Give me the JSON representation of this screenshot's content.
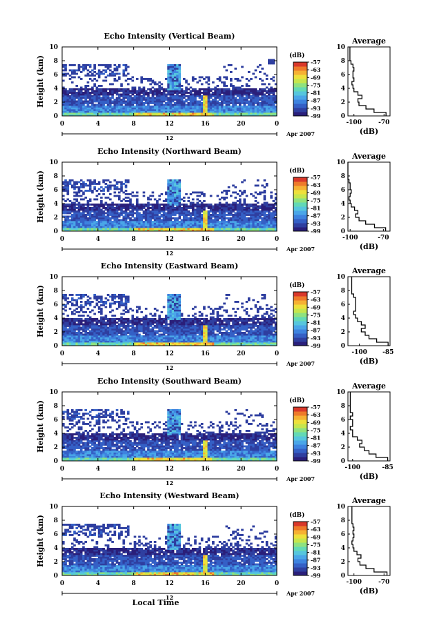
{
  "figure": {
    "x_axis_label": "Local Time",
    "date_label": "Apr 2007",
    "colors": [
      "#2a1f7a",
      "#2f3fa0",
      "#3560c6",
      "#3e83df",
      "#4aa6e8",
      "#56c6dd",
      "#63d9b5",
      "#8fe27f",
      "#c6e64d",
      "#eee03b",
      "#f6b133",
      "#ee7a2a",
      "#d9382a"
    ],
    "panels": [
      {
        "title": "Echo Intensity (Vertical Beam)",
        "y_label": "Height (km)",
        "cb_unit": "(dB)",
        "cb_ticks": [
          "-57",
          "-63",
          "-69",
          "-75",
          "-81",
          "-87",
          "-93",
          "-99"
        ],
        "x_ticks": [
          "0",
          "4",
          "8",
          "12",
          "16",
          "20",
          "0"
        ],
        "day_label": "12",
        "avg_title": "Average",
        "avg_unit": "(dB)",
        "avg_x_ticks": [
          "-100",
          "-70"
        ]
      },
      {
        "title": "Echo Intensity (Northward Beam)",
        "y_label": "Height (km)",
        "cb_unit": "(dB)",
        "cb_ticks": [
          "-57",
          "-63",
          "-69",
          "-75",
          "-81",
          "-87",
          "-93",
          "-99"
        ],
        "x_ticks": [
          "0",
          "4",
          "8",
          "12",
          "16",
          "20",
          "0"
        ],
        "day_label": "12",
        "avg_title": "Average",
        "avg_unit": "(dB)",
        "avg_x_ticks": [
          "-100",
          "-70"
        ]
      },
      {
        "title": "Echo Intensity (Eastward Beam)",
        "y_label": "Height (km)",
        "cb_unit": "(dB)",
        "cb_ticks": [
          "-57",
          "-63",
          "-69",
          "-75",
          "-81",
          "-87",
          "-93",
          "-99"
        ],
        "x_ticks": [
          "0",
          "4",
          "8",
          "12",
          "16",
          "20",
          "0"
        ],
        "day_label": "12",
        "avg_title": "Average",
        "avg_unit": "(dB)",
        "avg_x_ticks": [
          "-100",
          "-85"
        ]
      },
      {
        "title": "Echo Intensity (Southward Beam)",
        "y_label": "Height (km)",
        "cb_unit": "(dB)",
        "cb_ticks": [
          "-57",
          "-63",
          "-69",
          "-75",
          "-81",
          "-87",
          "-93",
          "-99"
        ],
        "x_ticks": [
          "0",
          "4",
          "8",
          "12",
          "16",
          "20",
          "0"
        ],
        "day_label": "12",
        "avg_title": "Average",
        "avg_unit": "(dB)",
        "avg_x_ticks": [
          "-100",
          "-85"
        ]
      },
      {
        "title": "Echo Intensity (Westward Beam)",
        "y_label": "Height (km)",
        "cb_unit": "(dB)",
        "cb_ticks": [
          "-57",
          "-63",
          "-69",
          "-75",
          "-81",
          "-87",
          "-93",
          "-99"
        ],
        "x_ticks": [
          "0",
          "4",
          "8",
          "12",
          "16",
          "20",
          "0"
        ],
        "day_label": "12",
        "avg_title": "Average",
        "avg_unit": "(dB)",
        "avg_x_ticks": [
          "-100",
          "-70"
        ]
      }
    ]
  },
  "chart_data": [
    {
      "type": "heatmap",
      "title": "Echo Intensity (Vertical Beam)",
      "xlabel": "Local Time",
      "ylabel": "Height (km)",
      "xlim": [
        0,
        24
      ],
      "ylim": [
        0,
        10
      ],
      "clim": [
        -99,
        -57
      ],
      "colorbar_label": "(dB)",
      "average_profile": {
        "title": "Average",
        "xlabel": "(dB)",
        "xlim": [
          -106,
          -64
        ],
        "height": [
          0,
          0.5,
          1,
          1.5,
          2,
          2.5,
          3,
          3.5,
          4,
          4.5,
          5,
          5.5,
          6,
          6.5,
          7,
          7.5,
          8,
          8.5,
          9,
          9.5,
          10
        ],
        "db": [
          -68,
          -80,
          -88,
          -95,
          -96,
          -92,
          -96,
          -100,
          -101,
          -102,
          -100,
          -101,
          -101,
          -100,
          -101,
          -103,
          -104,
          -104,
          -104,
          -104,
          -104
        ]
      }
    },
    {
      "type": "heatmap",
      "title": "Echo Intensity (Northward Beam)",
      "xlabel": "Local Time",
      "ylabel": "Height (km)",
      "xlim": [
        0,
        24
      ],
      "ylim": [
        0,
        10
      ],
      "clim": [
        -99,
        -57
      ],
      "colorbar_label": "(dB)",
      "average_profile": {
        "title": "Average",
        "xlabel": "(dB)",
        "xlim": [
          -102,
          -64
        ],
        "height": [
          0,
          0.5,
          1,
          1.5,
          2,
          2.5,
          3,
          3.5,
          4,
          4.5,
          5,
          5.5,
          6,
          6.5,
          7,
          7.5,
          8,
          8.5,
          9,
          9.5,
          10
        ],
        "db": [
          -68,
          -78,
          -86,
          -92,
          -95,
          -93,
          -96,
          -99,
          -100,
          -101,
          -100,
          -99,
          -100,
          -100,
          -101,
          -102,
          -102,
          -102,
          -102,
          -102,
          -102
        ]
      }
    },
    {
      "type": "heatmap",
      "title": "Echo Intensity (Eastward Beam)",
      "xlabel": "Local Time",
      "ylabel": "Height (km)",
      "xlim": [
        0,
        24
      ],
      "ylim": [
        0,
        10
      ],
      "clim": [
        -99,
        -57
      ],
      "colorbar_label": "(dB)",
      "average_profile": {
        "title": "Average",
        "xlabel": "(dB)",
        "xlim": [
          -106,
          -84
        ],
        "height": [
          0,
          0.5,
          1,
          1.5,
          2,
          2.5,
          3,
          3.5,
          4,
          4.5,
          5,
          5.5,
          6,
          6.5,
          7,
          7.5,
          8,
          8.5,
          9,
          9.5,
          10
        ],
        "db": [
          -85,
          -91,
          -95,
          -97,
          -99,
          -97,
          -99,
          -101,
          -102,
          -103,
          -102,
          -102,
          -102,
          -102,
          -103,
          -104,
          -104,
          -104,
          -104,
          -104,
          -104
        ]
      }
    },
    {
      "type": "heatmap",
      "title": "Echo Intensity (Southward Beam)",
      "xlabel": "Local Time",
      "ylabel": "Height (km)",
      "xlim": [
        0,
        24
      ],
      "ylim": [
        0,
        10
      ],
      "clim": [
        -99,
        -57
      ],
      "colorbar_label": "(dB)",
      "average_profile": {
        "title": "Average",
        "xlabel": "(dB)",
        "xlim": [
          -102,
          -84
        ],
        "height": [
          0,
          0.5,
          1,
          1.5,
          2,
          2.5,
          3,
          3.5,
          4,
          4.5,
          5,
          5.5,
          6,
          6.5,
          7,
          7.5,
          8,
          8.5,
          9,
          9.5,
          10
        ],
        "db": [
          -85,
          -90,
          -93,
          -95,
          -97,
          -96,
          -98,
          -100,
          -100,
          -101,
          -100,
          -100,
          -101,
          -100,
          -101,
          -101,
          -101,
          -101,
          -101,
          -101,
          -101
        ]
      }
    },
    {
      "type": "heatmap",
      "title": "Echo Intensity (Westward Beam)",
      "xlabel": "Local Time",
      "ylabel": "Height (km)",
      "xlim": [
        0,
        24
      ],
      "ylim": [
        0,
        10
      ],
      "clim": [
        -99,
        -57
      ],
      "colorbar_label": "(dB)",
      "average_profile": {
        "title": "Average",
        "xlabel": "(dB)",
        "xlim": [
          -106,
          -64
        ],
        "height": [
          0,
          0.5,
          1,
          1.5,
          2,
          2.5,
          3,
          3.5,
          4,
          4.5,
          5,
          5.5,
          6,
          6.5,
          7,
          7.5,
          8,
          8.5,
          9,
          9.5,
          10
        ],
        "db": [
          -67,
          -80,
          -88,
          -94,
          -96,
          -93,
          -97,
          -100,
          -101,
          -102,
          -101,
          -100,
          -101,
          -100,
          -101,
          -102,
          -102,
          -102,
          -102,
          -102,
          -102
        ]
      }
    }
  ]
}
